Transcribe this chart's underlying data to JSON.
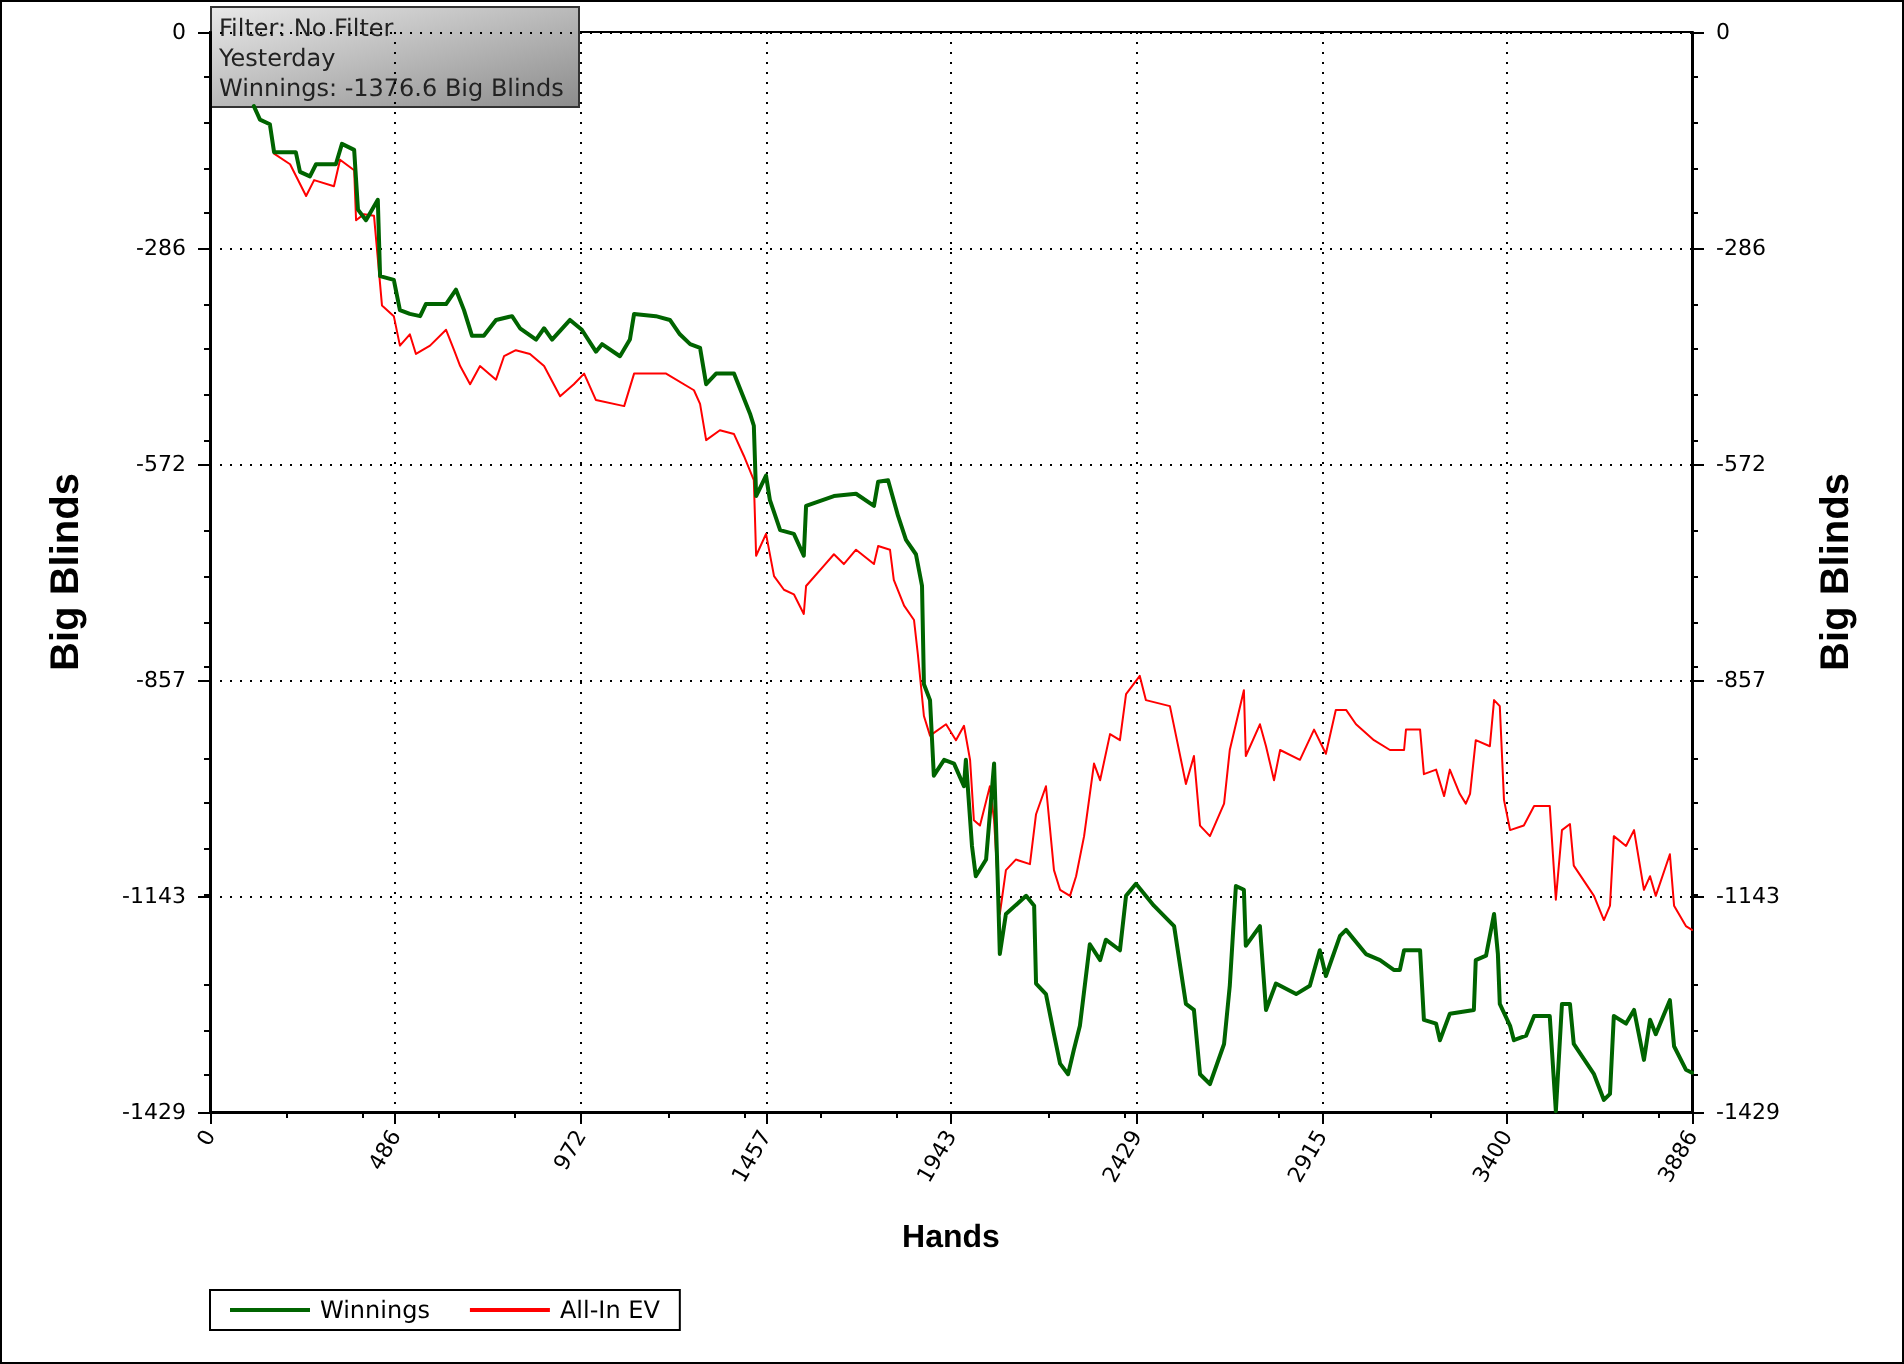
{
  "chart_data": {
    "type": "line",
    "xlabel": "Hands",
    "ylabel": "Big Blinds",
    "y2label": "Big Blinds",
    "annotations": [
      "Filter: No Filter",
      "Yesterday",
      "Winnings: -1376.6 Big Blinds"
    ],
    "xlim": [
      0,
      3886
    ],
    "xticks": [
      0,
      486,
      972,
      1457,
      1943,
      2429,
      2915,
      3400,
      3886
    ],
    "ylim": [
      -1429,
      0
    ],
    "yticks": [
      0,
      -286,
      -572,
      -857,
      -1143,
      -1429
    ],
    "y2lim": [
      -1429,
      0
    ],
    "y2ticks": [
      0,
      -286,
      -572,
      -857,
      -1143,
      -1429
    ],
    "grid": true,
    "legend": "bottom left",
    "marker": "none",
    "line_style": "solid",
    "series": [
      {
        "name": "Winnings",
        "color": "#006400",
        "x": [
          115,
          131,
          157,
          168,
          225,
          236,
          262,
          278,
          330,
          346,
          378,
          388,
          409,
          440,
          446,
          482,
          498,
          524,
          551,
          566,
          619,
          645,
          666,
          687,
          718,
          750,
          792,
          813,
          855,
          876,
          897,
          944,
          975,
          1012,
          1028,
          1075,
          1101,
          1112,
          1169,
          1206,
          1232,
          1259,
          1285,
          1301,
          1327,
          1374,
          1416,
          1426,
          1432,
          1458,
          1468,
          1495,
          1531,
          1557,
          1563,
          1636,
          1694,
          1741,
          1752,
          1778,
          1804,
          1825,
          1851,
          1867,
          1872,
          1888,
          1898,
          1925,
          1951,
          1977,
          1982,
          1998,
          2008,
          2035,
          2056,
          2066,
          2071,
          2087,
          2140,
          2161,
          2166,
          2192,
          2213,
          2229,
          2250,
          2265,
          2281,
          2307,
          2334,
          2349,
          2386,
          2402,
          2428,
          2475,
          2528,
          2559,
          2580,
          2596,
          2622,
          2659,
          2674,
          2690,
          2711,
          2716,
          2753,
          2769,
          2795,
          2848,
          2884,
          2910,
          2926,
          2963,
          2979,
          3031,
          3068,
          3104,
          3120,
          3131,
          3173,
          3183,
          3215,
          3225,
          3251,
          3314,
          3319,
          3346,
          3367,
          3377,
          3382,
          3409,
          3419,
          3451,
          3472,
          3513,
          3529,
          3545,
          3566,
          3576,
          3629,
          3655,
          3671,
          3681,
          3713,
          3734,
          3760,
          3776,
          3791,
          3828,
          3839,
          3870,
          3886
        ],
        "values": [
          -98,
          -116,
          -122,
          -159,
          -159,
          -185,
          -191,
          -175,
          -175,
          -148,
          -156,
          -235,
          -249,
          -222,
          -323,
          -328,
          -368,
          -373,
          -376,
          -360,
          -360,
          -341,
          -368,
          -402,
          -402,
          -381,
          -376,
          -392,
          -407,
          -392,
          -407,
          -381,
          -394,
          -423,
          -413,
          -429,
          -407,
          -373,
          -376,
          -381,
          -400,
          -413,
          -418,
          -466,
          -452,
          -452,
          -505,
          -521,
          -614,
          -587,
          -619,
          -659,
          -664,
          -693,
          -627,
          -614,
          -611,
          -627,
          -595,
          -593,
          -640,
          -672,
          -691,
          -733,
          -863,
          -884,
          -984,
          -963,
          -968,
          -998,
          -963,
          -1077,
          -1117,
          -1095,
          -968,
          -1130,
          -1220,
          -1167,
          -1143,
          -1156,
          -1259,
          -1273,
          -1326,
          -1365,
          -1379,
          -1347,
          -1315,
          -1207,
          -1228,
          -1201,
          -1215,
          -1143,
          -1127,
          -1156,
          -1183,
          -1286,
          -1294,
          -1379,
          -1392,
          -1339,
          -1262,
          -1130,
          -1135,
          -1209,
          -1183,
          -1294,
          -1259,
          -1273,
          -1262,
          -1215,
          -1249,
          -1196,
          -1188,
          -1220,
          -1228,
          -1241,
          -1241,
          -1215,
          -1215,
          -1307,
          -1312,
          -1334,
          -1299,
          -1294,
          -1228,
          -1222,
          -1167,
          -1220,
          -1286,
          -1315,
          -1334,
          -1328,
          -1302,
          -1302,
          -1428,
          -1286,
          -1286,
          -1339,
          -1379,
          -1413,
          -1405,
          -1302,
          -1312,
          -1294,
          -1360,
          -1307,
          -1326,
          -1281,
          -1342,
          -1373,
          -1377
        ]
      },
      {
        "name": "All-In EV",
        "color": "#ff0000",
        "x": [
          168,
          210,
          252,
          273,
          325,
          341,
          378,
          383,
          404,
          430,
          451,
          482,
          498,
          524,
          540,
          577,
          619,
          640,
          656,
          682,
          708,
          750,
          771,
          802,
          839,
          876,
          918,
          954,
          981,
          1012,
          1086,
          1112,
          1196,
          1269,
          1285,
          1301,
          1337,
          1374,
          1400,
          1426,
          1432,
          1458,
          1479,
          1505,
          1531,
          1557,
          1563,
          1610,
          1636,
          1662,
          1694,
          1741,
          1752,
          1783,
          1793,
          1820,
          1846,
          1856,
          1872,
          1888,
          1930,
          1956,
          1977,
          1993,
          2003,
          2019,
          2045,
          2056,
          2066,
          2071,
          2087,
          2113,
          2150,
          2166,
          2192,
          2213,
          2229,
          2255,
          2271,
          2292,
          2318,
          2334,
          2360,
          2386,
          2402,
          2438,
          2454,
          2517,
          2533,
          2559,
          2580,
          2596,
          2622,
          2659,
          2674,
          2711,
          2716,
          2753,
          2769,
          2790,
          2806,
          2858,
          2895,
          2926,
          2952,
          2979,
          3005,
          3052,
          3094,
          3131,
          3136,
          3173,
          3183,
          3215,
          3236,
          3251,
          3277,
          3293,
          3304,
          3319,
          3356,
          3367,
          3382,
          3393,
          3409,
          3445,
          3472,
          3513,
          3529,
          3545,
          3566,
          3576,
          3629,
          3655,
          3671,
          3681,
          3713,
          3734,
          3760,
          3776,
          3791,
          3828,
          3839,
          3870,
          3886
        ],
        "values": [
          -161,
          -175,
          -217,
          -196,
          -204,
          -169,
          -183,
          -249,
          -241,
          -243,
          -362,
          -376,
          -415,
          -400,
          -426,
          -415,
          -394,
          -421,
          -442,
          -466,
          -442,
          -460,
          -429,
          -421,
          -426,
          -442,
          -482,
          -466,
          -452,
          -487,
          -495,
          -452,
          -452,
          -474,
          -492,
          -540,
          -527,
          -532,
          -561,
          -593,
          -693,
          -664,
          -720,
          -738,
          -744,
          -770,
          -733,
          -706,
          -691,
          -704,
          -685,
          -704,
          -680,
          -685,
          -725,
          -759,
          -778,
          -823,
          -905,
          -931,
          -916,
          -937,
          -918,
          -963,
          -1043,
          -1050,
          -998,
          -1043,
          -1130,
          -1167,
          -1109,
          -1095,
          -1101,
          -1035,
          -998,
          -1109,
          -1135,
          -1143,
          -1117,
          -1064,
          -968,
          -990,
          -929,
          -937,
          -876,
          -852,
          -884,
          -892,
          -931,
          -995,
          -958,
          -1050,
          -1064,
          -1021,
          -950,
          -871,
          -958,
          -916,
          -945,
          -990,
          -950,
          -963,
          -923,
          -955,
          -897,
          -897,
          -916,
          -937,
          -950,
          -950,
          -923,
          -923,
          -982,
          -976,
          -1011,
          -976,
          -1008,
          -1021,
          -1008,
          -937,
          -945,
          -884,
          -892,
          -1016,
          -1056,
          -1050,
          -1024,
          -1024,
          -1148,
          -1056,
          -1048,
          -1103,
          -1143,
          -1175,
          -1156,
          -1064,
          -1077,
          -1056,
          -1135,
          -1117,
          -1143,
          -1088,
          -1156,
          -1183,
          -1188
        ]
      }
    ]
  }
}
